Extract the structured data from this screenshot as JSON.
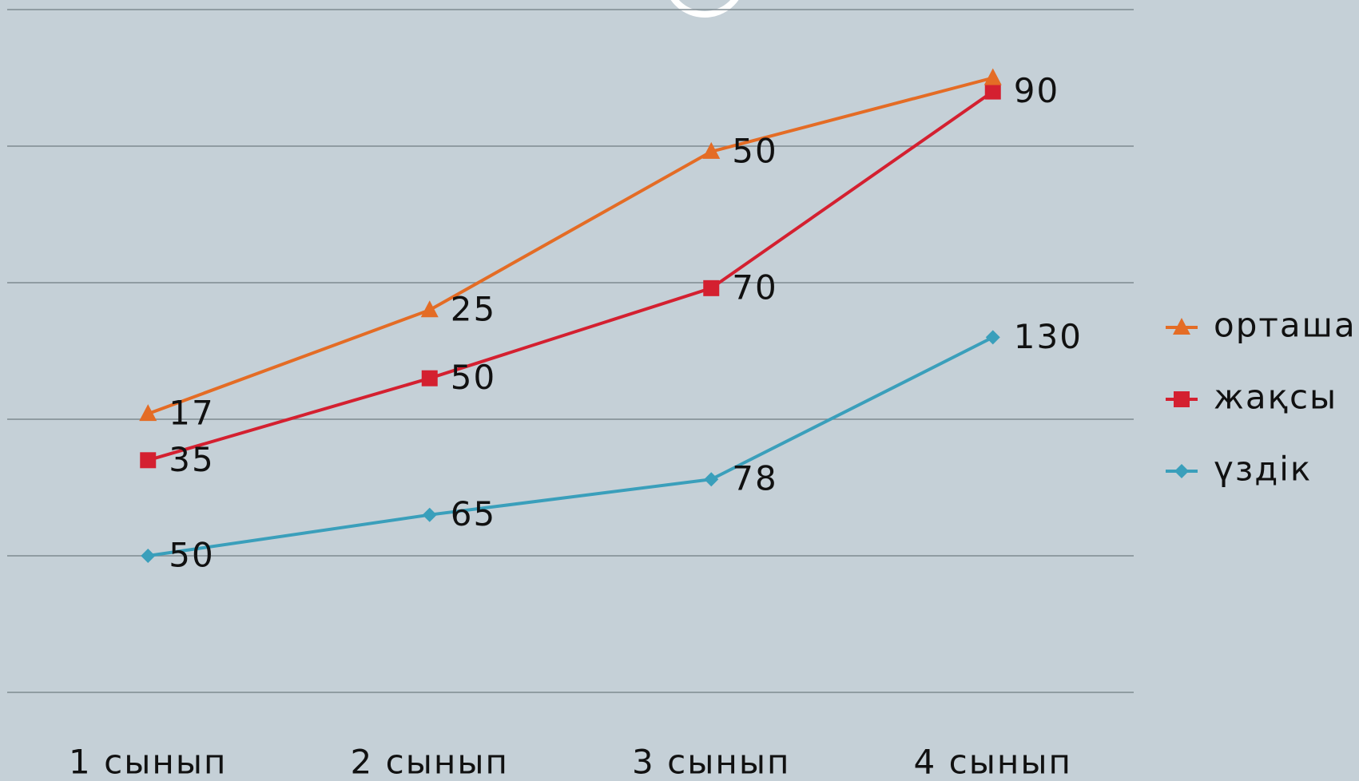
{
  "chart_data": {
    "type": "line",
    "stacked": true,
    "categories": [
      "1 сынып",
      "2 сынып",
      "3 сынып",
      "4 сынып"
    ],
    "series": [
      {
        "name": "үздік",
        "color": "#3a9fbb",
        "marker": "diamond",
        "values": [
          50,
          65,
          78,
          130
        ]
      },
      {
        "name": "жақсы",
        "color": "#d42030",
        "marker": "square",
        "values": [
          35,
          50,
          70,
          90
        ]
      },
      {
        "name": "орташа",
        "color": "#e46c25",
        "marker": "triangle",
        "values": [
          17,
          25,
          50,
          5
        ],
        "value_labels": [
          "17",
          "25",
          "50",
          null
        ]
      }
    ],
    "ylim": [
      0,
      250
    ],
    "gridlines": [
      0,
      50,
      100,
      150,
      200,
      250
    ],
    "legend": "right"
  }
}
